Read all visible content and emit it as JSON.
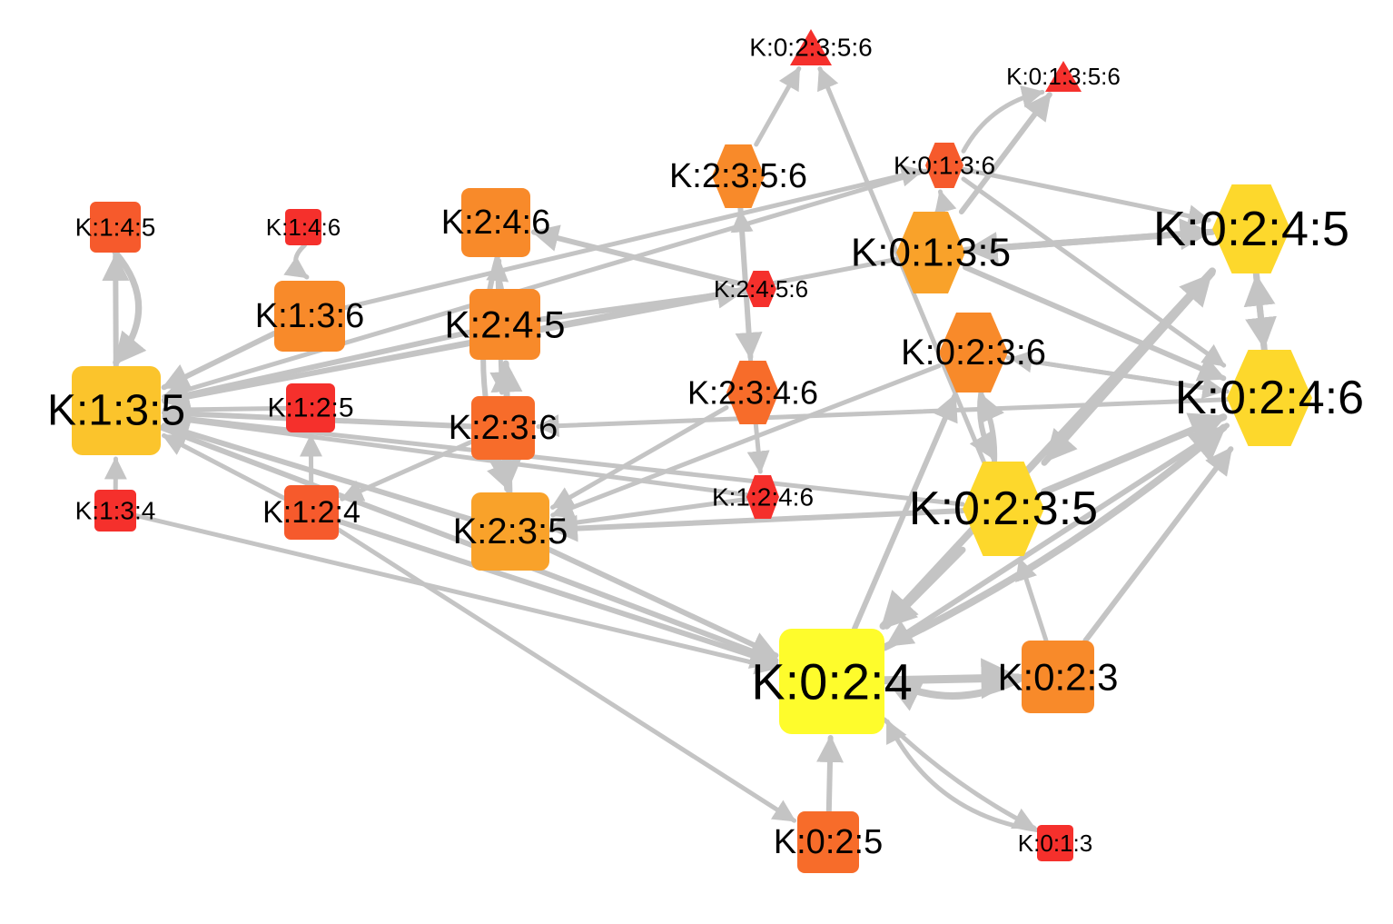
{
  "colors": {
    "edge": "#c4c4c4",
    "background": "#ffffff",
    "palette_low_to_high": [
      "#f5302c",
      "#f65a2c",
      "#f76c2a",
      "#f88a2a",
      "#f9a22a",
      "#fbc42c",
      "#fdd82c",
      "#fefc2c"
    ]
  },
  "nodes": [
    {
      "id": "k0235_6",
      "label": "K:0:2:3:5:6",
      "shape": "triangle",
      "color": "#f5302c"
    },
    {
      "id": "k0135_6",
      "label": "K:0:1:3:5:6",
      "shape": "triangle",
      "color": "#f5302c"
    },
    {
      "id": "k2356",
      "label": "K:2:3:5:6",
      "shape": "hexagon",
      "color": "#f88a2a"
    },
    {
      "id": "k0136",
      "label": "K:0:1:3:6",
      "shape": "hexagon",
      "color": "#f65a2c"
    },
    {
      "id": "k145",
      "label": "K:1:4:5",
      "shape": "square",
      "color": "#f65a2c"
    },
    {
      "id": "k146",
      "label": "K:1:4:6",
      "shape": "square",
      "color": "#f5302c"
    },
    {
      "id": "k246",
      "label": "K:2:4:6",
      "shape": "square",
      "color": "#f88a2a"
    },
    {
      "id": "k0245",
      "label": "K:0:2:4:5",
      "shape": "hexagon",
      "color": "#fdd82c"
    },
    {
      "id": "k0135",
      "label": "K:0:1:3:5",
      "shape": "hexagon",
      "color": "#f9a22a"
    },
    {
      "id": "k2456",
      "label": "K:2:4:5:6",
      "shape": "hexagon",
      "color": "#f5302c"
    },
    {
      "id": "k136",
      "label": "K:1:3:6",
      "shape": "square",
      "color": "#f88a2a"
    },
    {
      "id": "k245",
      "label": "K:2:4:5",
      "shape": "square",
      "color": "#f88a2a"
    },
    {
      "id": "k0236",
      "label": "K:0:2:3:6",
      "shape": "hexagon",
      "color": "#f88a2a"
    },
    {
      "id": "k0246",
      "label": "K:0:2:4:6",
      "shape": "hexagon",
      "color": "#fdd82c"
    },
    {
      "id": "k135",
      "label": "K:1:3:5",
      "shape": "square",
      "color": "#fbc42c"
    },
    {
      "id": "k125",
      "label": "K:1:2:5",
      "shape": "square",
      "color": "#f5302c"
    },
    {
      "id": "k2346",
      "label": "K:2:3:4:6",
      "shape": "hexagon",
      "color": "#f76c2a"
    },
    {
      "id": "k236",
      "label": "K:2:3:6",
      "shape": "square",
      "color": "#f76c2a"
    },
    {
      "id": "k1246",
      "label": "K:1:2:4:6",
      "shape": "hexagon",
      "color": "#f5302c"
    },
    {
      "id": "k0235",
      "label": "K:0:2:3:5",
      "shape": "hexagon",
      "color": "#fdd82c"
    },
    {
      "id": "k134",
      "label": "K:1:3:4",
      "shape": "square",
      "color": "#f5302c"
    },
    {
      "id": "k124",
      "label": "K:1:2:4",
      "shape": "square",
      "color": "#f65a2c"
    },
    {
      "id": "k235",
      "label": "K:2:3:5",
      "shape": "square",
      "color": "#f9a22a"
    },
    {
      "id": "k024",
      "label": "K:0:2:4",
      "shape": "square",
      "color": "#fefc2c"
    },
    {
      "id": "k023",
      "label": "K:0:2:3",
      "shape": "square",
      "color": "#f88a2a"
    },
    {
      "id": "k025",
      "label": "K:0:2:5",
      "shape": "square",
      "color": "#f76c2a"
    },
    {
      "id": "k013",
      "label": "K:0:1:3",
      "shape": "square",
      "color": "#f5302c"
    }
  ],
  "edges": [
    {
      "from": "k145",
      "to": "k135"
    },
    {
      "from": "k135",
      "to": "k145"
    },
    {
      "from": "k146",
      "to": "k136"
    },
    {
      "from": "k134",
      "to": "k135"
    },
    {
      "from": "k125",
      "to": "k135"
    },
    {
      "from": "k124",
      "to": "k135"
    },
    {
      "from": "k124",
      "to": "k125"
    },
    {
      "from": "k136",
      "to": "k135"
    },
    {
      "from": "k245",
      "to": "k135"
    },
    {
      "from": "k245",
      "to": "k246"
    },
    {
      "from": "k236",
      "to": "k135"
    },
    {
      "from": "k235",
      "to": "k135"
    },
    {
      "from": "k235",
      "to": "k245"
    },
    {
      "from": "k236",
      "to": "k235"
    },
    {
      "from": "k246",
      "to": "k235"
    },
    {
      "from": "k236",
      "to": "k124"
    },
    {
      "from": "k135",
      "to": "k024"
    },
    {
      "from": "k134",
      "to": "k024"
    },
    {
      "from": "k124",
      "to": "k024"
    },
    {
      "from": "k124",
      "to": "k025"
    },
    {
      "from": "k235",
      "to": "k024"
    },
    {
      "from": "k2456",
      "to": "k246"
    },
    {
      "from": "k2456",
      "to": "k135"
    },
    {
      "from": "k2356",
      "to": "k0235_6"
    },
    {
      "from": "k2356",
      "to": "k2346"
    },
    {
      "from": "k2346",
      "to": "k2356"
    },
    {
      "from": "k2346",
      "to": "k1246"
    },
    {
      "from": "k2346",
      "to": "k235"
    },
    {
      "from": "k1246",
      "to": "k235"
    },
    {
      "from": "k0136",
      "to": "k0135_6"
    },
    {
      "from": "k0136",
      "to": "k0245"
    },
    {
      "from": "k0136",
      "to": "k135"
    },
    {
      "from": "k0135",
      "to": "k0135_6"
    },
    {
      "from": "k0135",
      "to": "k0245"
    },
    {
      "from": "k0135",
      "to": "k0246"
    },
    {
      "from": "k0135",
      "to": "k0136"
    },
    {
      "from": "k0245",
      "to": "k0135"
    },
    {
      "from": "k0245",
      "to": "k0246"
    },
    {
      "from": "k0245",
      "to": "k024"
    },
    {
      "from": "k0245",
      "to": "k0235"
    },
    {
      "from": "k0246",
      "to": "k0245"
    },
    {
      "from": "k0246",
      "to": "k024"
    },
    {
      "from": "k0246",
      "to": "k0236"
    },
    {
      "from": "k0246",
      "to": "k236"
    },
    {
      "from": "k0236",
      "to": "k0246"
    },
    {
      "from": "k0236",
      "to": "k0235"
    },
    {
      "from": "k0236",
      "to": "k235"
    },
    {
      "from": "k0235",
      "to": "k0236"
    },
    {
      "from": "k0235",
      "to": "k0246"
    },
    {
      "from": "k0235",
      "to": "k0245"
    },
    {
      "from": "k0235",
      "to": "k024"
    },
    {
      "from": "k0235",
      "to": "k235"
    },
    {
      "from": "k0235",
      "to": "k0235_6"
    },
    {
      "from": "k0235",
      "to": "k135"
    },
    {
      "from": "k1246",
      "to": "k135"
    },
    {
      "from": "k024",
      "to": "k023"
    },
    {
      "from": "k024",
      "to": "k0246"
    },
    {
      "from": "k024",
      "to": "k0236"
    },
    {
      "from": "k024",
      "to": "k013"
    },
    {
      "from": "k023",
      "to": "k0246"
    },
    {
      "from": "k023",
      "to": "k024"
    },
    {
      "from": "k023",
      "to": "k0235"
    },
    {
      "from": "k025",
      "to": "k024"
    },
    {
      "from": "k013",
      "to": "k024"
    },
    {
      "from": "k246",
      "to": "k236"
    },
    {
      "from": "k245",
      "to": "k2456"
    },
    {
      "from": "k136",
      "to": "k0136"
    },
    {
      "from": "k0135",
      "to": "k135"
    },
    {
      "from": "k0136",
      "to": "k0246"
    }
  ]
}
